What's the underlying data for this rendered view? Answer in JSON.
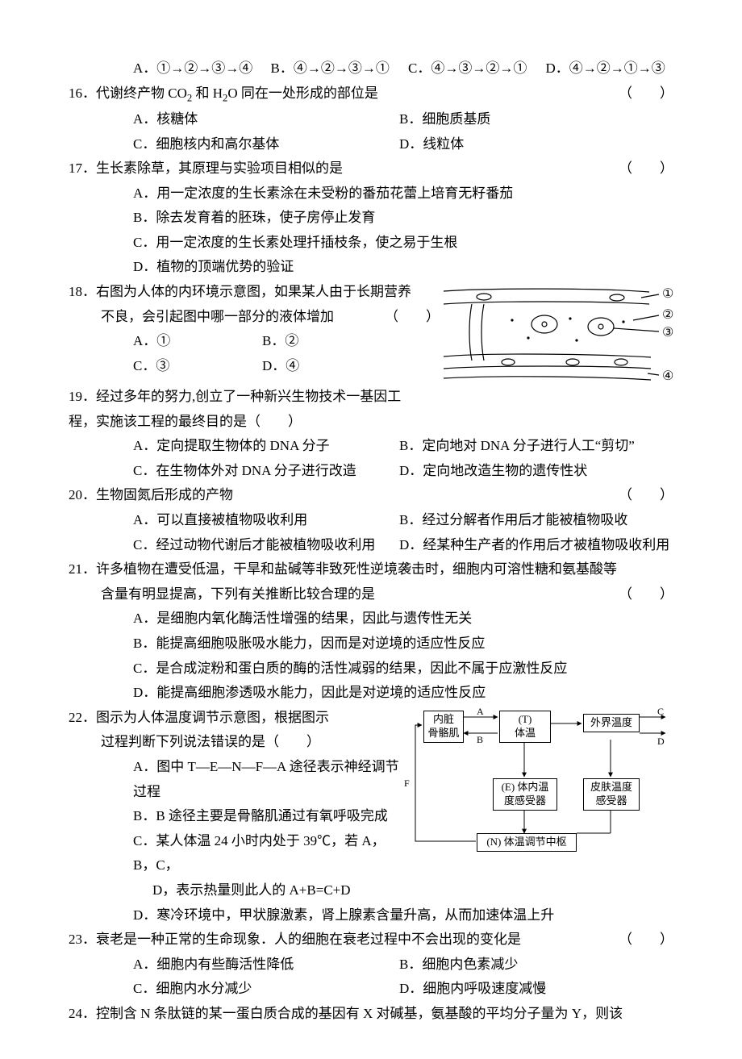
{
  "optRow15": {
    "a": "A．①→②→③→④",
    "b": "B．④→②→③→①",
    "c": "C．④→③→②→①",
    "d": "D．④→②→①→③"
  },
  "q16": {
    "num": "16．",
    "stem_pre": "代谢终产物 CO",
    "sub1": "2",
    "stem_mid": " 和 H",
    "sub2": "2",
    "stem_post": "O 同在一处形成的部位是",
    "paren": "（　　）",
    "a": "A．核糖体",
    "b": "B．细胞质基质",
    "c": "C．细胞核内和高尔基体",
    "d": "D．线粒体"
  },
  "q17": {
    "num": "17．",
    "stem": "生长素除草，其原理与实验项目相似的是",
    "paren": "（　　）",
    "a": "A．用一定浓度的生长素涂在未受粉的番茄花蕾上培育无籽番茄",
    "b": "B．除去发育着的胚珠，使子房停止发育",
    "c": "C．用一定浓度的生长素处理扦插枝条，使之易于生根",
    "d": "D．植物的顶端优势的验证"
  },
  "q18": {
    "num": "18．",
    "stem1": "右图为人体的内环境示意图，如果某人由于长期营养",
    "stem2": "不良，会引起图中哪一部分的液体增加",
    "paren": "（　　）",
    "a_label": "A．",
    "a_val": "①",
    "b_label": "B．",
    "b_val": "②",
    "c_label": "C．",
    "c_val": "③",
    "d_label": "D．",
    "d_val": "④",
    "fig_labels": {
      "l1": "①",
      "l2": "②",
      "l3": "③",
      "l4": "④"
    }
  },
  "q19": {
    "num": "19．",
    "stem1": "经过多年的努力,创立了一种新兴生物技术一基因工",
    "stem2": "程，实施该工程的最终目的是（　　）",
    "a": "A．定向提取生物体的 DNA 分子",
    "b": "B．定向地对 DNA 分子进行人工“剪切”",
    "c": "C．在生物体外对 DNA 分子进行改造",
    "d": "D．定向地改造生物的遗传性状"
  },
  "q20": {
    "num": "20．",
    "stem": "生物固氮后形成的产物",
    "paren": "（　　）",
    "a": "A．可以直接被植物吸收利用",
    "b": "B．经过分解者作用后才能被植物吸收",
    "c": "C．经过动物代谢后才能被植物吸收利用",
    "d": "D．经某种生产者的作用后才被植物吸收利用"
  },
  "q21": {
    "num": "21．",
    "stem1": "许多植物在遭受低温，干旱和盐碱等非致死性逆境袭击时，细胞内可溶性糖和氨基酸等",
    "stem2": "含量有明显提高，下列有关推断比较合理的是",
    "paren": "（　　）",
    "a": "A．是细胞内氧化酶活性增强的结果，因此与遗传性无关",
    "b": "B．能提高细胞吸胀吸水能力，因而是对逆境的适应性反应",
    "c": "C．是合成淀粉和蛋白质的酶的活性减弱的结果，因此不属于应激性反应",
    "d": "D．能提高细胞渗透吸水能力，因此是对逆境的适应性反应"
  },
  "q22": {
    "num": "22．",
    "stem1": "图示为人体温度调节示意图，根据图示",
    "stem2": "过程判断下列说法错误的是（　　）",
    "a": "A．图中 T—E—N—F—A 途径表示神经调节过程",
    "b": "B．B 途径主要是骨骼肌通过有氧呼吸完成",
    "c1": "C．某人体温 24 小时内处于 39℃，若 A，B，C，",
    "c2": "D，表示热量则此人的 A+B=C+D",
    "d": "D．寒冷环境中，甲状腺激素，肾上腺素含量升高，从而加速体温上升",
    "fig": {
      "box1": "内脏\n骨骼肌",
      "box2_pre": "(T)",
      "box2": "体温",
      "box3": "外界温度",
      "box4_pre": "(E)",
      "box4": "体内温\n度感受器",
      "box5": "皮肤温度\n感受器",
      "box6_pre": "(N)",
      "box6": "体温调节中枢",
      "labelA": "A",
      "labelB": "B",
      "labelC": "C",
      "labelD": "D",
      "labelF": "F"
    }
  },
  "q23": {
    "num": "23．",
    "stem": "衰老是一种正常的生命现象．人的细胞在衰老过程中不会出现的变化是",
    "paren": "（　　）",
    "a": "A．细胞内有些酶活性降低",
    "b": "B．细胞内色素减少",
    "c": "C．细胞内水分减少",
    "d": "D．细胞内呼吸速度减慢"
  },
  "q24": {
    "num": "24．",
    "stem": "控制含 N 条肽链的某一蛋白质合成的基因有 X 对碱基，氨基酸的平均分子量为 Y，则该"
  }
}
